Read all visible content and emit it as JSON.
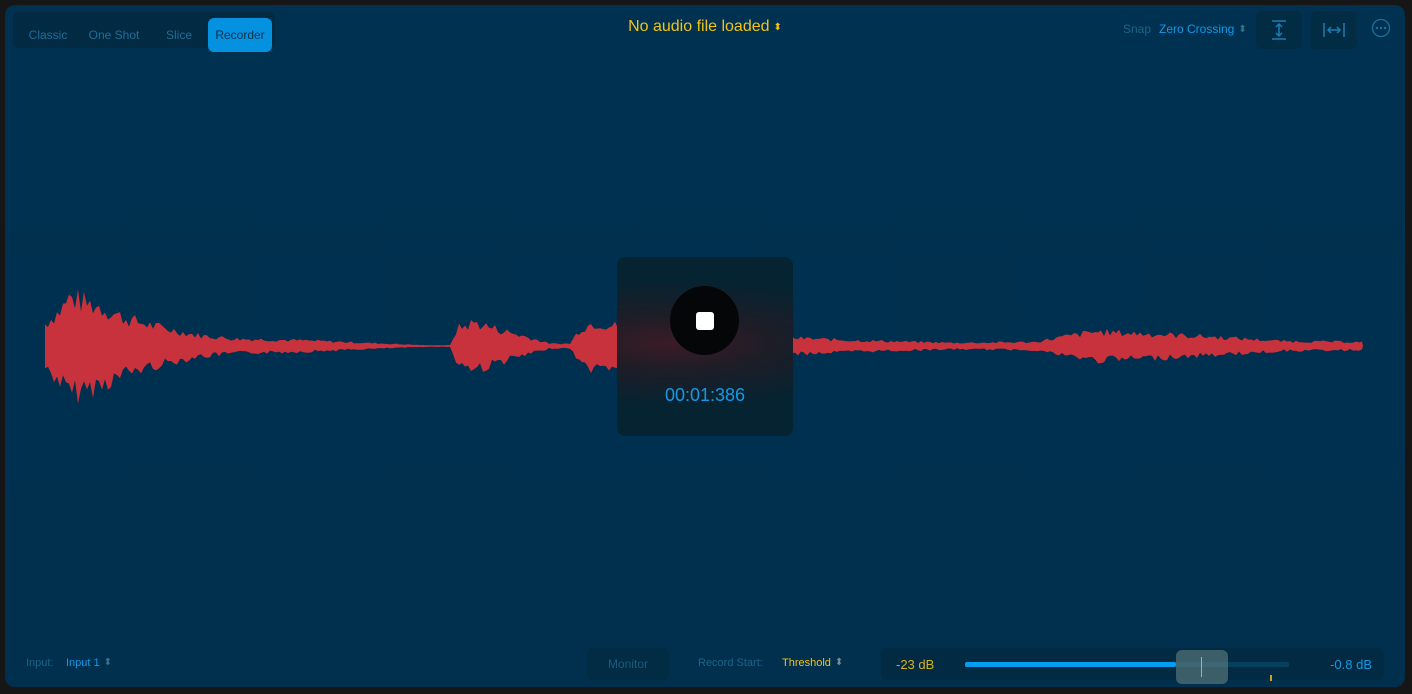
{
  "tabs": [
    {
      "label": "Classic",
      "active": false
    },
    {
      "label": "One Shot",
      "active": false
    },
    {
      "label": "Slice",
      "active": false
    },
    {
      "label": "Recorder",
      "active": true
    }
  ],
  "title": "No audio file loaded",
  "snap": {
    "label": "Snap",
    "value": "Zero Crossing"
  },
  "icons": {
    "fit_vertical": "vertical-zoom-icon",
    "fit_horizontal": "horizontal-zoom-icon",
    "more": "more-ellipsis-icon"
  },
  "recorder": {
    "state": "recording",
    "stop_icon": "stop-icon",
    "time": "00:01:386"
  },
  "footer": {
    "input_label": "Input:",
    "input_value": "Input 1",
    "monitor": "Monitor",
    "record_start_label": "Record Start:",
    "record_start_value": "Threshold",
    "threshold": "-23 dB",
    "level": "-0.8 dB",
    "threshold_percent": 73,
    "level_fill_percent": 65,
    "peak_hold_percent": 94
  },
  "colors": {
    "accent": "#0391e0",
    "waveform": "#c8323c",
    "title": "#f0c418",
    "background": "#00304e"
  }
}
